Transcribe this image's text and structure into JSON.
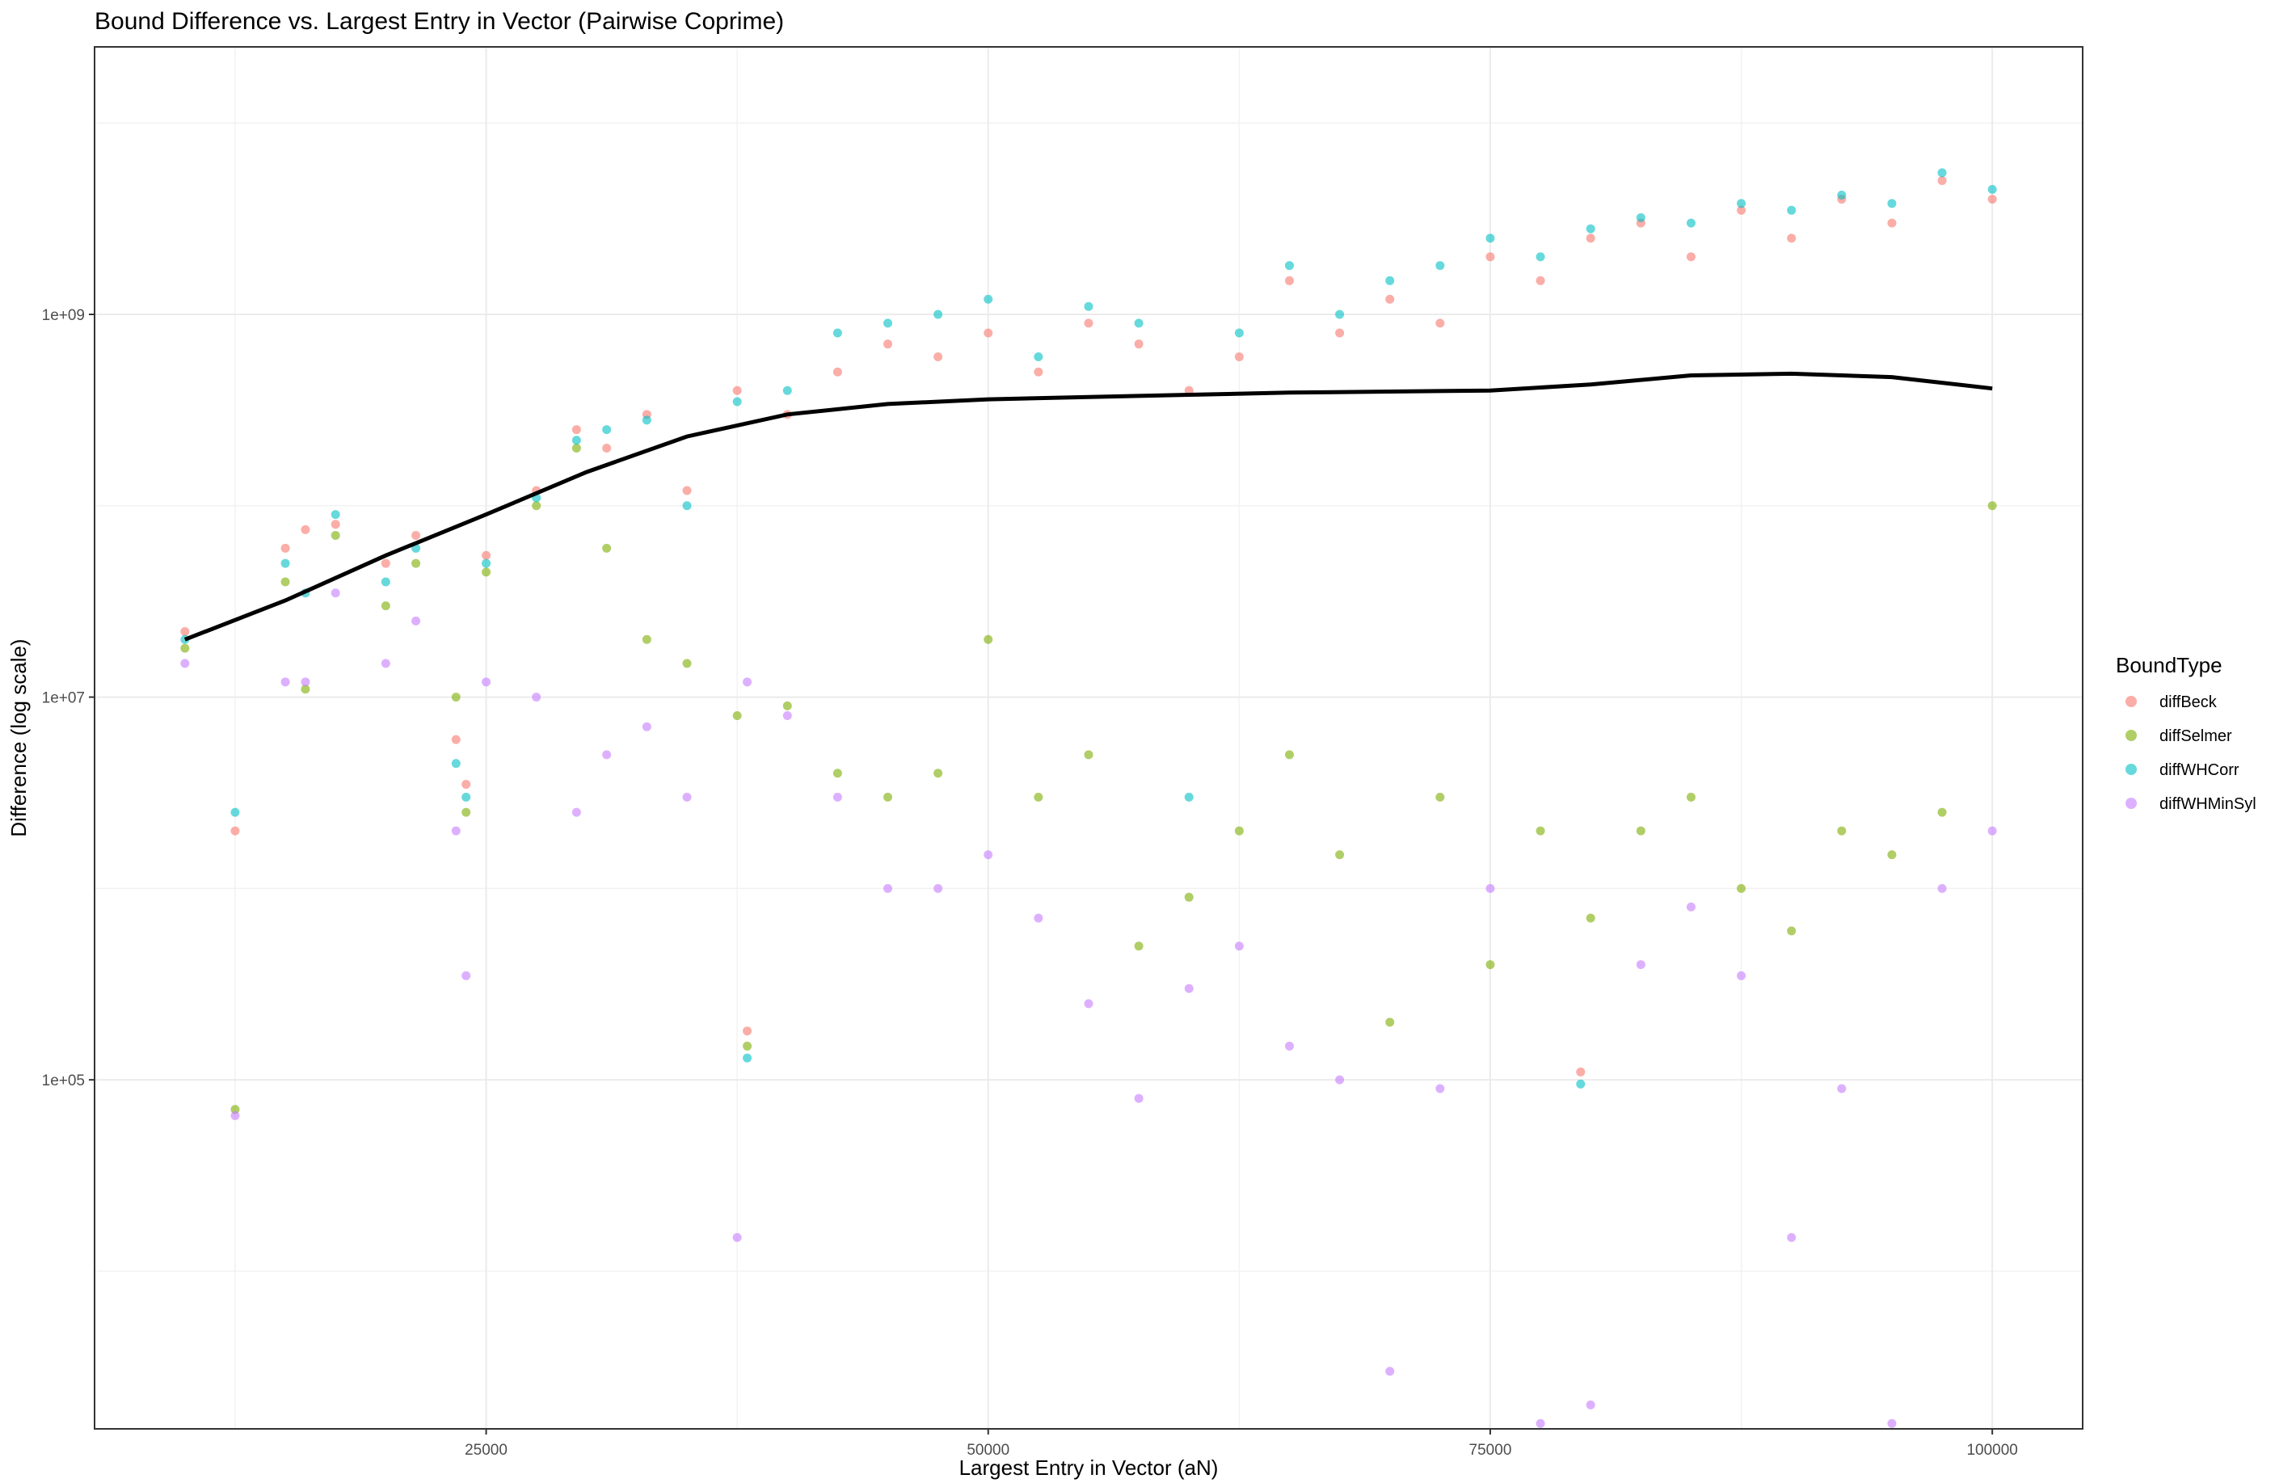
{
  "chart_data": {
    "type": "scatter",
    "title": "Bound Difference vs. Largest Entry in Vector (Pairwise Coprime)",
    "xlabel": "Largest Entry in Vector (aN)",
    "ylabel": "Difference (log scale)",
    "x_ticks": [
      25000,
      50000,
      75000,
      100000
    ],
    "x_tick_labels": [
      "25000",
      "50000",
      "75000",
      "100000"
    ],
    "xlim": [
      5500,
      104500
    ],
    "y_scale": "log10",
    "y_ticks": [
      100000,
      10000000,
      1000000000
    ],
    "y_tick_labels": [
      "1e+05",
      "1e+07",
      "1e+09"
    ],
    "ylim": [
      1500,
      25000000000
    ],
    "grid": true,
    "legend": {
      "title": "BoundType",
      "position": "right"
    },
    "series": [
      {
        "name": "diffBeck",
        "color": "#F8766D",
        "x": [
          10000,
          12500,
          15000,
          16000,
          17500,
          20000,
          21500,
          23500,
          24000,
          25000,
          27500,
          29500,
          31000,
          33000,
          35000,
          37500,
          38000,
          40000,
          42500,
          45000,
          47500,
          50000,
          52500,
          55000,
          57500,
          60000,
          62500,
          65000,
          67500,
          70000,
          72500,
          75000,
          77500,
          79500,
          80000,
          82500,
          85000,
          87500,
          90000,
          92500,
          95000,
          97500,
          100000
        ],
        "y": [
          22000000,
          2000000,
          60000000,
          75000000,
          80000000,
          50000000,
          70000000,
          6000000,
          3500000,
          55000000,
          120000000,
          250000000,
          200000000,
          300000000,
          120000000,
          400000000,
          180000,
          300000000,
          500000000,
          700000000,
          600000000,
          800000000,
          500000000,
          900000000,
          700000000,
          400000000,
          600000000,
          1500000000,
          800000000,
          1200000000,
          900000000,
          2000000000,
          1500000000,
          110000,
          2500000000,
          3000000000,
          2000000000,
          3500000000,
          2500000000,
          4000000000,
          3000000000,
          5000000000,
          4000000000
        ]
      },
      {
        "name": "diffSelmer",
        "color": "#7CAE00",
        "x": [
          10000,
          12500,
          15000,
          16000,
          17500,
          20000,
          21500,
          23500,
          24000,
          25000,
          27500,
          29500,
          31000,
          33000,
          35000,
          37500,
          38000,
          40000,
          42500,
          45000,
          47500,
          50000,
          52500,
          55000,
          57500,
          60000,
          62500,
          65000,
          67500,
          70000,
          72500,
          75000,
          77500,
          80000,
          82500,
          85000,
          87500,
          90000,
          92500,
          95000,
          97500,
          100000
        ],
        "y": [
          18000000,
          70000,
          40000000,
          11000000,
          70000000,
          30000000,
          50000000,
          10000000,
          2500000,
          45000000,
          100000000,
          200000000,
          60000000,
          20000000,
          15000000,
          8000000,
          150000,
          9000000,
          4000000,
          3000000,
          4000000,
          20000000,
          3000000,
          5000000,
          500000,
          900000,
          2000000,
          5000000,
          1500000,
          200000,
          3000000,
          400000,
          2000000,
          700000,
          2000000,
          3000000,
          1000000,
          600000,
          2000000,
          1500000,
          2500000,
          100000000
        ]
      },
      {
        "name": "diffWHCorr",
        "color": "#00BFC4",
        "x": [
          10000,
          12500,
          15000,
          16000,
          17500,
          20000,
          21500,
          23500,
          24000,
          25000,
          27500,
          29500,
          31000,
          33000,
          35000,
          37500,
          38000,
          40000,
          42500,
          45000,
          47500,
          50000,
          52500,
          55000,
          57500,
          60000,
          62500,
          65000,
          67500,
          70000,
          72500,
          75000,
          77500,
          79500,
          80000,
          82500,
          85000,
          87500,
          90000,
          92500,
          95000,
          97500,
          100000
        ],
        "y": [
          20000000,
          2500000,
          50000000,
          35000000,
          90000000,
          40000000,
          60000000,
          4500000,
          3000000,
          50000000,
          110000000,
          220000000,
          250000000,
          280000000,
          100000000,
          350000000,
          130000,
          400000000,
          800000000,
          900000000,
          1000000000,
          1200000000,
          600000000,
          1100000000,
          900000000,
          3000000,
          800000000,
          1800000000,
          1000000000,
          1500000000,
          1800000000,
          2500000000,
          2000000000,
          95000,
          2800000000,
          3200000000,
          3000000000,
          3800000000,
          3500000000,
          4200000000,
          3800000000,
          5500000000,
          4500000000
        ]
      },
      {
        "name": "diffWHMinSyl",
        "color": "#C77CFF",
        "x": [
          10000,
          12500,
          15000,
          16000,
          17500,
          20000,
          21500,
          23500,
          24000,
          25000,
          27500,
          29500,
          31000,
          33000,
          35000,
          37500,
          38000,
          40000,
          42500,
          45000,
          47500,
          50000,
          52500,
          55000,
          57500,
          60000,
          62500,
          65000,
          67500,
          70000,
          72500,
          75000,
          77500,
          80000,
          82500,
          85000,
          87500,
          90000,
          92500,
          95000,
          97500,
          100000
        ],
        "y": [
          15000000,
          65000,
          12000000,
          12000000,
          35000000,
          15000000,
          25000000,
          2000000,
          350000,
          12000000,
          10000000,
          2500000,
          5000000,
          7000000,
          3000000,
          15000,
          12000000,
          8000000,
          3000000,
          1000000,
          1000000,
          1500000,
          700000,
          250000,
          80000,
          300000,
          500000,
          150000,
          100000,
          3000,
          90000,
          1000000,
          1600,
          2000,
          400000,
          800000,
          350000,
          15000,
          90000,
          1600,
          1000000,
          2000000
        ]
      },
      {
        "name": "smooth",
        "color": "#000000",
        "line": true,
        "x": [
          10000,
          15000,
          20000,
          25000,
          30000,
          35000,
          40000,
          45000,
          50000,
          55000,
          60000,
          65000,
          70000,
          75000,
          80000,
          85000,
          90000,
          95000,
          100000
        ],
        "y": [
          20000000,
          32000000,
          55000000,
          90000000,
          150000000,
          230000000,
          300000000,
          340000000,
          360000000,
          370000000,
          380000000,
          390000000,
          395000000,
          400000000,
          430000000,
          480000000,
          490000000,
          470000000,
          410000000
        ]
      }
    ]
  }
}
